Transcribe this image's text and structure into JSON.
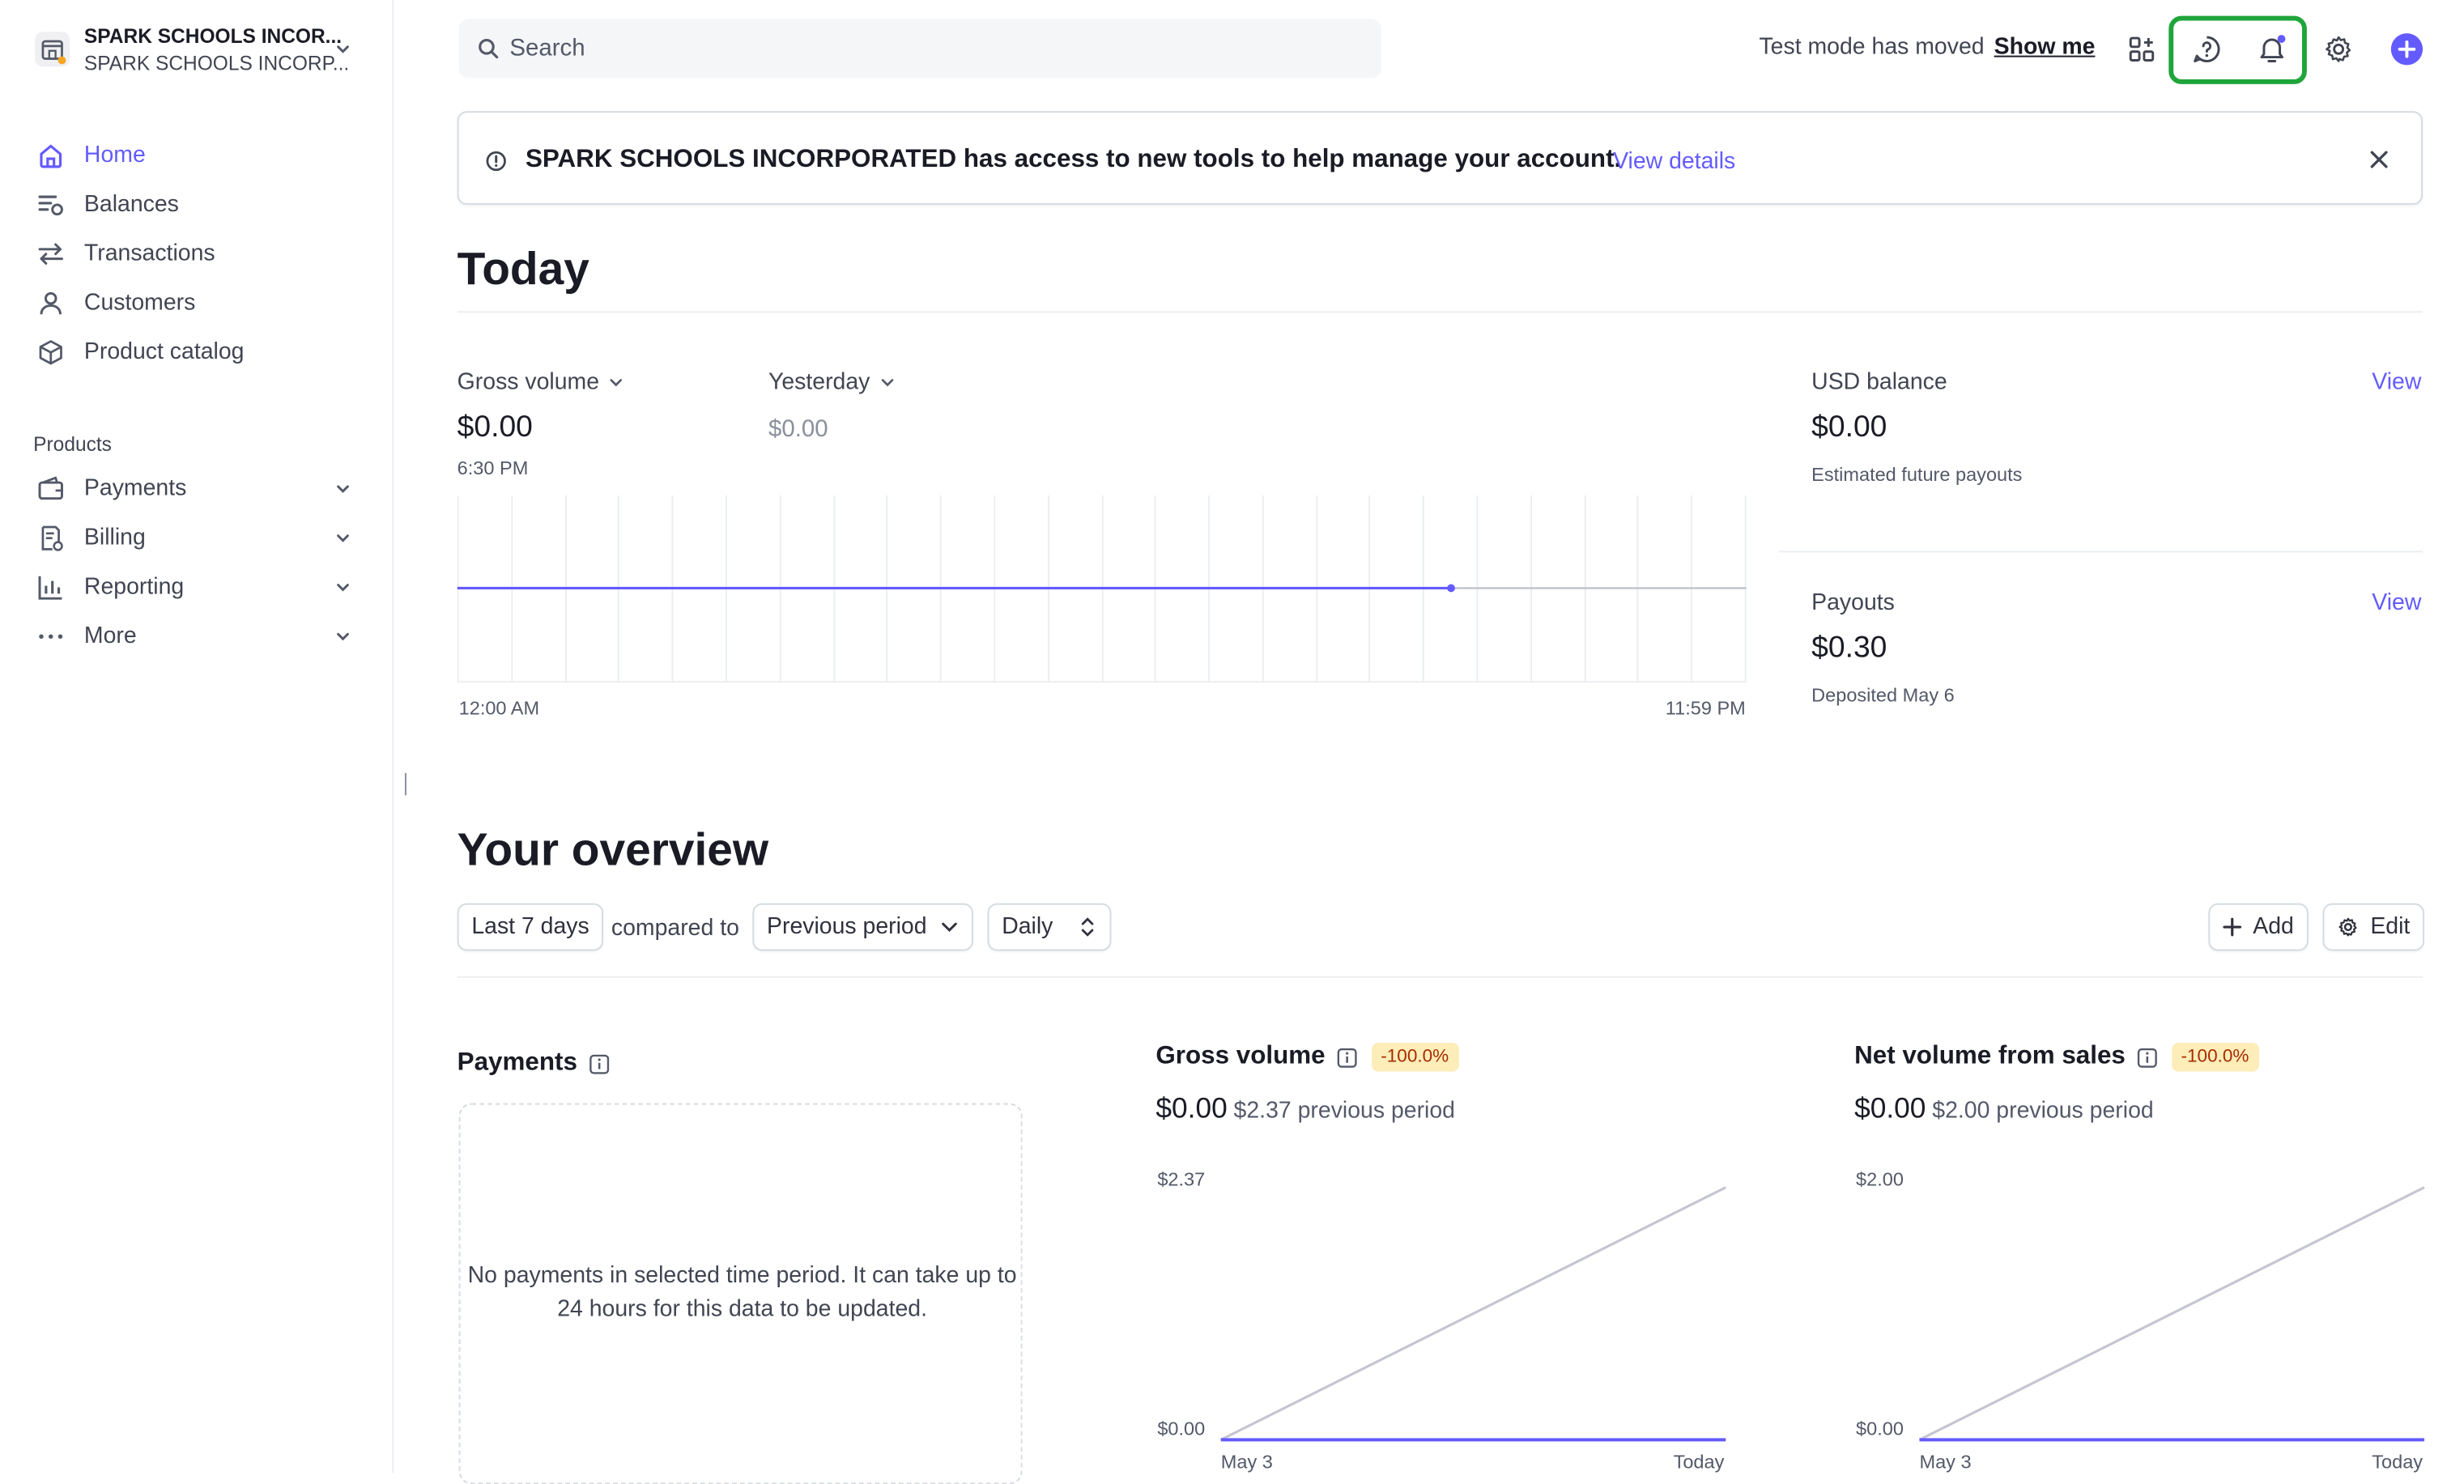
{
  "account": {
    "name": "SPARK SCHOOLS INCOR...",
    "subname": "SPARK SCHOOLS INCORP..."
  },
  "nav": {
    "items": [
      {
        "label": "Home",
        "icon": "home-icon"
      },
      {
        "label": "Balances",
        "icon": "balances-icon"
      },
      {
        "label": "Transactions",
        "icon": "transactions-icon"
      },
      {
        "label": "Customers",
        "icon": "customers-icon"
      },
      {
        "label": "Product catalog",
        "icon": "product-catalog-icon"
      }
    ],
    "products_label": "Products",
    "products": [
      {
        "label": "Payments",
        "icon": "payments-icon"
      },
      {
        "label": "Billing",
        "icon": "billing-icon"
      },
      {
        "label": "Reporting",
        "icon": "reporting-icon"
      },
      {
        "label": "More",
        "icon": "more-icon"
      }
    ]
  },
  "topbar": {
    "search_placeholder": "Search",
    "test_mode_text": "Test mode has moved",
    "test_mode_link": "Show me",
    "icons": [
      "apps-icon",
      "help-icon",
      "notifications-icon",
      "settings-icon",
      "create-icon"
    ],
    "accent_color": "#635bff",
    "highlight_color": "#1fa53a"
  },
  "banner": {
    "text": "SPARK SCHOOLS INCORPORATED has access to new tools to help manage your account.",
    "link": "View details"
  },
  "today": {
    "title": "Today",
    "gross_label": "Gross volume",
    "gross_value": "$0.00",
    "gross_time": "6:30 PM",
    "compare_label": "Yesterday",
    "compare_value": "$0.00",
    "x_start": "12:00 AM",
    "x_end": "11:59 PM",
    "usd_label": "USD balance",
    "usd_value": "$0.00",
    "usd_sub": "Estimated future payouts",
    "usd_view": "View",
    "payouts_label": "Payouts",
    "payouts_value": "$0.30",
    "payouts_sub": "Deposited May 6",
    "payouts_view": "View"
  },
  "overview": {
    "title": "Your overview",
    "range": "Last 7 days",
    "compared_to": "compared to",
    "comparison": "Previous period",
    "interval": "Daily",
    "add": "Add",
    "edit": "Edit",
    "payments_title": "Payments",
    "payments_empty": "No payments in selected time period. It can take up to 24 hours for this data to be updated.",
    "gross": {
      "title": "Gross volume",
      "delta": "-100.0%",
      "value": "$0.00",
      "previous": "$2.37 previous period",
      "y_max": "$2.37",
      "y_min": "$0.00",
      "x_start": "May 3",
      "x_end": "Today"
    },
    "net": {
      "title": "Net volume from sales",
      "delta": "-100.0%",
      "value": "$0.00",
      "previous": "$2.00 previous period",
      "y_max": "$2.00",
      "y_min": "$0.00",
      "x_start": "May 3",
      "x_end": "Today"
    }
  }
}
